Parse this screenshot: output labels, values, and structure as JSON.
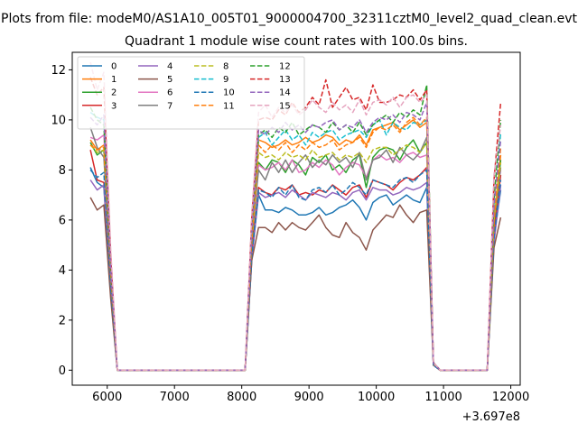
{
  "chart_data": {
    "type": "line",
    "suptitle": "Plots from file: modeM0/AS1A10_005T01_9000004700_32311cztM0_level2_quad_clean.evt",
    "title": "Quadrant 1 module wise count rates with 100.0s bins.",
    "xlabel": "",
    "ylabel": "",
    "x_offset_label": "+3.697e8",
    "xlim": [
      5480,
      12140
    ],
    "ylim": [
      -0.6,
      12.7
    ],
    "x_ticks": [
      6000,
      7000,
      8000,
      9000,
      10000,
      11000,
      12000
    ],
    "y_ticks": [
      0,
      2,
      4,
      6,
      8,
      10,
      12
    ],
    "grid": false,
    "legend_position": "top-left",
    "legend_ncol": 4,
    "x": [
      5750,
      5850,
      5950,
      6050,
      6150,
      8050,
      8150,
      8250,
      8350,
      8450,
      8550,
      8650,
      8750,
      8850,
      8950,
      9050,
      9150,
      9250,
      9350,
      9450,
      9550,
      9650,
      9750,
      9850,
      9950,
      10050,
      10150,
      10250,
      10350,
      10450,
      10550,
      10650,
      10750,
      10850,
      10950,
      11650,
      11750,
      11850
    ],
    "series": [
      {
        "name": "0",
        "color": "#1f77b4",
        "dash": "solid",
        "values": [
          8.1,
          7.5,
          7.3,
          3.2,
          0,
          0,
          4.5,
          7.0,
          6.4,
          6.4,
          6.3,
          6.5,
          6.4,
          6.2,
          6.2,
          6.3,
          6.5,
          6.2,
          6.3,
          6.5,
          6.6,
          6.8,
          6.5,
          6.0,
          6.7,
          6.9,
          7.0,
          6.6,
          6.8,
          7.0,
          6.8,
          6.7,
          7.3,
          0.2,
          0,
          0,
          5.3,
          7.2
        ]
      },
      {
        "name": "1",
        "color": "#ff7f0e",
        "dash": "solid",
        "values": [
          9.2,
          8.8,
          9.0,
          4.0,
          0,
          0,
          5.2,
          9.2,
          9.1,
          8.9,
          9.0,
          9.2,
          9.0,
          9.1,
          9.3,
          9.1,
          9.2,
          9.4,
          9.3,
          9.0,
          9.2,
          9.1,
          9.4,
          9.0,
          9.6,
          9.7,
          9.8,
          9.9,
          9.6,
          9.8,
          10.0,
          9.7,
          9.9,
          0.3,
          0,
          0,
          6.0,
          8.6
        ]
      },
      {
        "name": "2",
        "color": "#2ca02c",
        "dash": "solid",
        "values": [
          9.1,
          8.6,
          8.8,
          3.9,
          0,
          0,
          5.1,
          8.3,
          8.0,
          8.4,
          8.3,
          7.9,
          8.4,
          8.2,
          7.8,
          8.5,
          8.3,
          8.6,
          8.0,
          8.2,
          7.9,
          8.4,
          8.6,
          7.3,
          8.5,
          8.8,
          8.9,
          8.8,
          8.4,
          8.9,
          9.2,
          8.7,
          9.1,
          0.2,
          0,
          0,
          5.8,
          8.4
        ]
      },
      {
        "name": "3",
        "color": "#d62728",
        "dash": "solid",
        "values": [
          8.8,
          7.6,
          7.5,
          3.3,
          0,
          0,
          4.7,
          7.3,
          7.1,
          7.0,
          7.3,
          7.2,
          7.4,
          7.0,
          7.1,
          7.0,
          7.2,
          7.1,
          7.4,
          7.2,
          7.0,
          7.3,
          7.4,
          6.9,
          7.6,
          7.5,
          7.4,
          7.2,
          7.5,
          7.7,
          7.6,
          7.8,
          8.1,
          0.2,
          0,
          0,
          5.4,
          7.8
        ]
      },
      {
        "name": "4",
        "color": "#9467bd",
        "dash": "solid",
        "values": [
          7.6,
          7.2,
          7.4,
          3.2,
          0,
          0,
          4.4,
          7.1,
          6.9,
          7.0,
          7.1,
          6.9,
          7.2,
          7.0,
          6.8,
          7.1,
          7.0,
          6.9,
          7.1,
          7.0,
          6.8,
          7.1,
          7.2,
          6.8,
          7.3,
          7.2,
          7.2,
          7.0,
          7.1,
          7.3,
          7.2,
          7.3,
          7.5,
          0.2,
          0,
          0,
          5.1,
          7.4
        ]
      },
      {
        "name": "5",
        "color": "#8c564b",
        "dash": "solid",
        "values": [
          6.9,
          6.4,
          6.6,
          2.9,
          0,
          0,
          4.4,
          5.7,
          5.7,
          5.5,
          5.9,
          5.6,
          5.9,
          5.7,
          5.6,
          5.9,
          6.2,
          5.7,
          5.4,
          5.3,
          5.9,
          5.5,
          5.3,
          4.8,
          5.6,
          5.9,
          6.2,
          6.1,
          6.6,
          6.2,
          5.9,
          6.3,
          6.4,
          0.2,
          0,
          0,
          4.9,
          6.1
        ]
      },
      {
        "name": "6",
        "color": "#e377c2",
        "dash": "solid",
        "values": [
          9.3,
          9.2,
          9.4,
          4.0,
          0,
          0,
          5.4,
          8.2,
          8.0,
          8.1,
          8.3,
          8.0,
          8.4,
          7.9,
          8.0,
          8.3,
          8.1,
          8.4,
          8.2,
          7.8,
          8.1,
          8.3,
          8.2,
          7.7,
          8.4,
          8.6,
          8.4,
          8.5,
          8.3,
          8.6,
          8.7,
          8.5,
          8.6,
          0.2,
          0,
          0,
          6.2,
          8.0
        ]
      },
      {
        "name": "7",
        "color": "#7f7f7f",
        "dash": "solid",
        "values": [
          9.7,
          8.9,
          8.5,
          3.9,
          0,
          0,
          5.3,
          8.0,
          7.6,
          8.3,
          7.9,
          8.4,
          7.9,
          8.3,
          8.6,
          8.1,
          8.4,
          8.2,
          8.6,
          8.3,
          8.5,
          8.1,
          8.7,
          7.6,
          8.4,
          8.5,
          8.8,
          8.3,
          8.9,
          8.6,
          8.4,
          8.7,
          9.3,
          0.2,
          0,
          0,
          6.0,
          8.1
        ]
      },
      {
        "name": "8",
        "color": "#bcbd22",
        "dash": "dashed",
        "values": [
          9.0,
          8.7,
          8.8,
          3.8,
          0,
          0,
          5.1,
          8.7,
          8.5,
          8.6,
          8.4,
          8.7,
          8.5,
          8.6,
          8.4,
          8.8,
          8.5,
          8.6,
          8.7,
          8.4,
          8.6,
          8.5,
          8.7,
          8.3,
          8.8,
          8.9,
          8.9,
          8.6,
          8.8,
          9.0,
          8.9,
          8.7,
          9.1,
          0.3,
          0,
          0,
          6.0,
          8.3
        ]
      },
      {
        "name": "9",
        "color": "#17becf",
        "dash": "dashed",
        "values": [
          10.3,
          10.1,
          10.0,
          4.2,
          0,
          0,
          5.6,
          9.3,
          9.5,
          9.0,
          9.3,
          9.6,
          9.2,
          9.4,
          9.0,
          9.5,
          9.3,
          9.5,
          9.6,
          9.2,
          9.4,
          9.5,
          9.6,
          9.3,
          9.8,
          10.0,
          9.4,
          9.9,
          9.7,
          9.6,
          9.9,
          9.8,
          10.0,
          0.3,
          0,
          0,
          6.4,
          9.5
        ]
      },
      {
        "name": "10",
        "color": "#1f77b4",
        "dash": "dashed",
        "values": [
          8.0,
          7.7,
          7.9,
          3.4,
          0,
          0,
          4.6,
          7.2,
          7.1,
          6.9,
          7.3,
          7.0,
          7.4,
          6.9,
          6.8,
          7.2,
          7.3,
          7.1,
          7.4,
          7.0,
          7.2,
          7.5,
          7.3,
          7.0,
          7.6,
          7.5,
          7.4,
          7.3,
          7.6,
          7.7,
          7.5,
          7.8,
          8.0,
          0.2,
          0,
          0,
          5.3,
          7.6
        ]
      },
      {
        "name": "11",
        "color": "#ff7f0e",
        "dash": "dashed",
        "values": [
          9.0,
          8.8,
          8.9,
          3.9,
          0,
          0,
          5.2,
          9.0,
          8.7,
          9.0,
          8.8,
          9.1,
          8.7,
          9.0,
          8.8,
          9.1,
          8.9,
          9.0,
          9.2,
          8.8,
          9.0,
          9.1,
          9.3,
          8.9,
          9.5,
          9.7,
          9.6,
          9.8,
          9.5,
          9.9,
          10.1,
          9.8,
          10.1,
          0.3,
          0,
          0,
          6.0,
          8.9
        ]
      },
      {
        "name": "12",
        "color": "#2ca02c",
        "dash": "dashed",
        "values": [
          10.5,
          10.0,
          9.8,
          4.3,
          0,
          0,
          5.8,
          9.4,
          9.6,
          9.3,
          9.7,
          9.5,
          9.9,
          9.4,
          9.6,
          9.8,
          9.7,
          9.5,
          9.9,
          9.6,
          9.8,
          9.5,
          9.9,
          9.4,
          9.8,
          10.0,
          10.2,
          9.9,
          10.3,
          10.1,
          10.4,
          10.2,
          11.4,
          0.3,
          0,
          0,
          6.8,
          10.0
        ]
      },
      {
        "name": "13",
        "color": "#d62728",
        "dash": "dashed",
        "values": [
          11.7,
          11.0,
          11.3,
          4.6,
          0,
          0,
          6.1,
          10.0,
          10.1,
          10.0,
          10.4,
          10.2,
          10.7,
          10.3,
          10.5,
          10.9,
          10.6,
          11.6,
          10.5,
          10.9,
          11.3,
          10.8,
          10.9,
          10.4,
          11.4,
          10.7,
          10.7,
          10.8,
          11.0,
          10.9,
          11.2,
          10.8,
          11.2,
          0.3,
          0,
          0,
          7.6,
          10.7
        ]
      },
      {
        "name": "14",
        "color": "#9467bd",
        "dash": "dashed",
        "values": [
          10.1,
          9.8,
          10.2,
          4.2,
          0,
          0,
          5.6,
          9.6,
          9.4,
          9.7,
          9.5,
          9.9,
          9.6,
          9.8,
          9.5,
          9.8,
          9.7,
          9.9,
          10.0,
          9.6,
          9.8,
          9.7,
          10.0,
          9.5,
          9.9,
          10.1,
          10.0,
          10.2,
          9.9,
          10.3,
          10.2,
          10.0,
          10.7,
          0.3,
          0,
          0,
          6.6,
          9.2
        ]
      },
      {
        "name": "15",
        "color": "#e6a4bf",
        "dash": "dashed",
        "values": [
          12.3,
          11.2,
          11.9,
          4.9,
          0,
          0,
          6.2,
          10.3,
          10.6,
          10.1,
          10.5,
          10.3,
          10.6,
          10.2,
          10.4,
          10.8,
          10.5,
          10.3,
          10.7,
          10.4,
          10.6,
          10.3,
          10.8,
          10.2,
          10.7,
          10.8,
          10.6,
          10.9,
          10.5,
          10.9,
          11.0,
          10.7,
          11.0,
          0.3,
          0,
          0,
          7.8,
          9.8
        ]
      }
    ]
  }
}
